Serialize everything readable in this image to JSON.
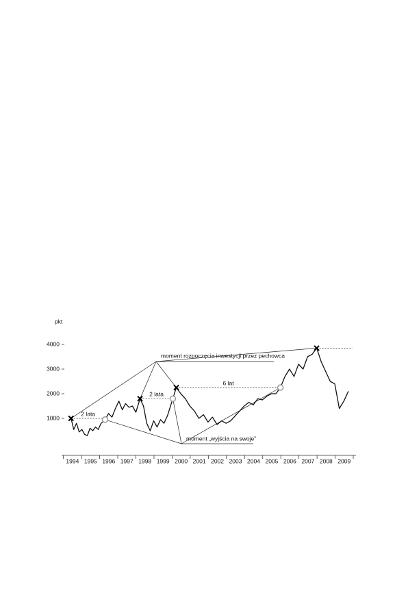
{
  "chart_data": {
    "type": "line",
    "y_label": "pkt",
    "color": "#111",
    "x": [
      1994.42,
      1994.57,
      1994.72,
      1994.87,
      1995.02,
      1995.17,
      1995.32,
      1995.47,
      1995.62,
      1995.77,
      1995.92,
      1996.08,
      1996.3,
      1996.49,
      1996.68,
      1996.87,
      1997.06,
      1997.25,
      1997.43,
      1997.62,
      1997.81,
      1998.0,
      1998.23,
      1998.42,
      1998.6,
      1998.79,
      1998.98,
      1999.17,
      1999.36,
      1999.55,
      1999.74,
      2000.04,
      2000.23,
      2000.48,
      2000.73,
      2000.98,
      2001.23,
      2001.48,
      2001.73,
      2001.98,
      2002.23,
      2002.48,
      2002.73,
      2002.98,
      2003.23,
      2003.48,
      2003.73,
      2003.98,
      2004.23,
      2004.48,
      2004.73,
      2004.98,
      2005.23,
      2005.48,
      2005.73,
      2005.98,
      2006.23,
      2006.48,
      2006.73,
      2006.98,
      2007.23,
      2007.48,
      2007.73,
      2007.98,
      2008.23,
      2008.48,
      2008.73,
      2008.98,
      2009.23,
      2009.48,
      2009.73
    ],
    "values": [
      1000,
      550,
      800,
      450,
      550,
      350,
      300,
      600,
      500,
      650,
      550,
      800,
      950,
      1200,
      1050,
      1400,
      1700,
      1350,
      1600,
      1450,
      1500,
      1250,
      1800,
      1500,
      800,
      500,
      900,
      650,
      950,
      800,
      1100,
      1800,
      2250,
      2000,
      1800,
      1500,
      1300,
      1000,
      1150,
      850,
      1050,
      750,
      900,
      800,
      900,
      1100,
      1300,
      1500,
      1650,
      1550,
      1800,
      1750,
      1900,
      2000,
      2000,
      2250,
      2700,
      3000,
      2700,
      3200,
      3000,
      3500,
      3600,
      3850,
      3300,
      2900,
      2500,
      2400,
      1400,
      1700,
      2100
    ],
    "xlim": [
      1993.9,
      2010.15
    ],
    "ylim": [
      -500,
      4500
    ],
    "yticks": [
      1000,
      2000,
      3000,
      4000
    ],
    "xticks": [
      1994,
      1995,
      1996,
      1997,
      1998,
      1999,
      2000,
      2001,
      2002,
      2003,
      2004,
      2005,
      2006,
      2007,
      2008,
      2009,
      2010
    ],
    "year_labels": [
      "1994",
      "1995",
      "1996",
      "1997",
      "1998",
      "1999",
      "2000",
      "2001",
      "2002",
      "2003",
      "2004",
      "2005",
      "2006",
      "2007",
      "2008",
      "2009"
    ],
    "entry_points": [
      {
        "x": 1994.42,
        "y": 1000
      },
      {
        "x": 1998.23,
        "y": 1800
      },
      {
        "x": 2000.23,
        "y": 2250
      },
      {
        "x": 2007.98,
        "y": 3850
      }
    ],
    "exit_points": [
      {
        "x": 1996.3,
        "y": 950
      },
      {
        "x": 2000.04,
        "y": 1800
      },
      {
        "x": 2005.98,
        "y": 2250
      }
    ],
    "intervals": [
      {
        "label": "2 lata"
      },
      {
        "label": "2 lata"
      },
      {
        "label": "6 lat"
      }
    ],
    "entry_note": "moment rozpoczęcia inwestycji przez pechowca",
    "exit_note": "moment „wyjścia na swoje”"
  }
}
